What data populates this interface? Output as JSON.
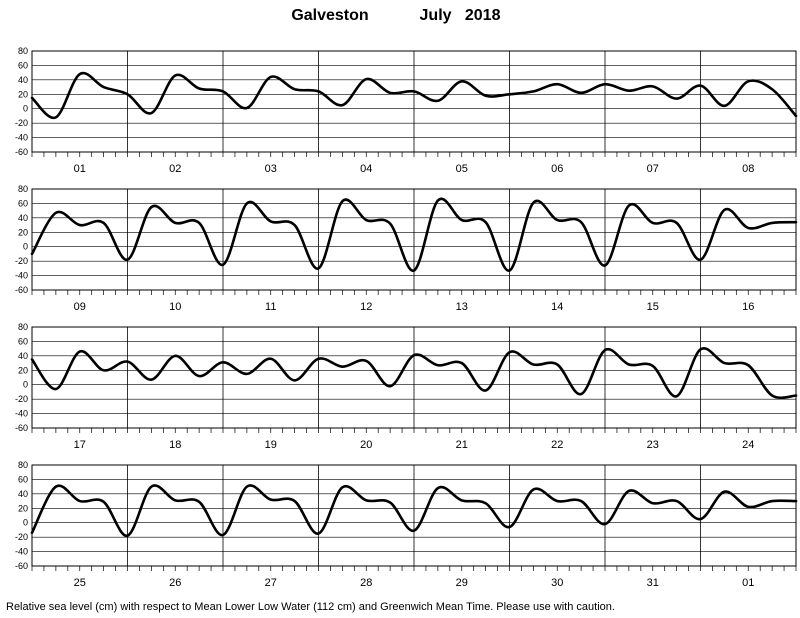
{
  "header": {
    "station": "Galveston",
    "month_year": "July   2018"
  },
  "footer": {
    "note": "Relative sea level (cm) with respect to Mean Lower Low Water (112 cm) and Greenwich Mean Time. Please use with caution."
  },
  "chart_data": {
    "type": "line",
    "ylim": [
      -60,
      80
    ],
    "yticks": [
      80,
      60,
      40,
      20,
      0,
      -20,
      -40,
      -60
    ],
    "x_unit": "hour",
    "tick_every_hours": 3,
    "grid": true,
    "panels": [
      {
        "days": [
          "01",
          "02",
          "03",
          "04",
          "05",
          "06",
          "07",
          "08"
        ],
        "hours": [
          0,
          6,
          12,
          18,
          24,
          30,
          36,
          42,
          48,
          54,
          60,
          66,
          72,
          78,
          84,
          90,
          96,
          102,
          108,
          114,
          120,
          126,
          132,
          138,
          144,
          150,
          156,
          162,
          168,
          174,
          180,
          186,
          192
        ],
        "values": [
          15,
          -12,
          48,
          30,
          20,
          -6,
          46,
          28,
          24,
          1,
          44,
          27,
          24,
          5,
          41,
          22,
          24,
          11,
          38,
          18,
          20,
          24,
          34,
          22,
          34,
          25,
          31,
          14,
          32,
          4,
          38,
          27,
          -10
        ]
      },
      {
        "days": [
          "09",
          "10",
          "11",
          "12",
          "13",
          "14",
          "15",
          "16"
        ],
        "hours": [
          0,
          6,
          12,
          18,
          24,
          30,
          36,
          42,
          48,
          54,
          60,
          66,
          72,
          78,
          84,
          90,
          96,
          102,
          108,
          114,
          120,
          126,
          132,
          138,
          144,
          150,
          156,
          162,
          168,
          174,
          180,
          186,
          192
        ],
        "values": [
          -10,
          47,
          30,
          33,
          -18,
          55,
          33,
          33,
          -25,
          60,
          35,
          30,
          -30,
          63,
          37,
          32,
          -33,
          64,
          37,
          34,
          -33,
          61,
          37,
          34,
          -26,
          57,
          33,
          33,
          -18,
          51,
          26,
          33,
          34
        ]
      },
      {
        "days": [
          "17",
          "18",
          "19",
          "20",
          "21",
          "22",
          "23",
          "24"
        ],
        "hours": [
          0,
          6,
          12,
          18,
          24,
          30,
          36,
          42,
          48,
          54,
          60,
          66,
          72,
          78,
          84,
          90,
          96,
          102,
          108,
          114,
          120,
          126,
          132,
          138,
          144,
          150,
          156,
          162,
          168,
          174,
          180,
          186,
          192
        ],
        "values": [
          35,
          -6,
          46,
          20,
          32,
          7,
          40,
          12,
          31,
          15,
          36,
          6,
          36,
          25,
          33,
          -2,
          41,
          27,
          30,
          -8,
          45,
          28,
          28,
          -13,
          48,
          28,
          26,
          -16,
          49,
          30,
          27,
          -15,
          -15
        ]
      },
      {
        "days": [
          "25",
          "26",
          "27",
          "28",
          "29",
          "30",
          "31",
          "01"
        ],
        "hours": [
          0,
          6,
          12,
          18,
          24,
          30,
          36,
          42,
          48,
          54,
          60,
          66,
          72,
          78,
          84,
          90,
          96,
          102,
          108,
          114,
          120,
          126,
          132,
          138,
          144,
          150,
          156,
          162,
          168,
          174,
          180,
          186,
          192
        ],
        "values": [
          -14,
          50,
          30,
          29,
          -18,
          50,
          31,
          29,
          -17,
          50,
          32,
          30,
          -15,
          49,
          31,
          28,
          -11,
          48,
          31,
          27,
          -6,
          46,
          30,
          30,
          -2,
          44,
          27,
          30,
          5,
          43,
          22,
          30,
          30
        ]
      }
    ]
  }
}
